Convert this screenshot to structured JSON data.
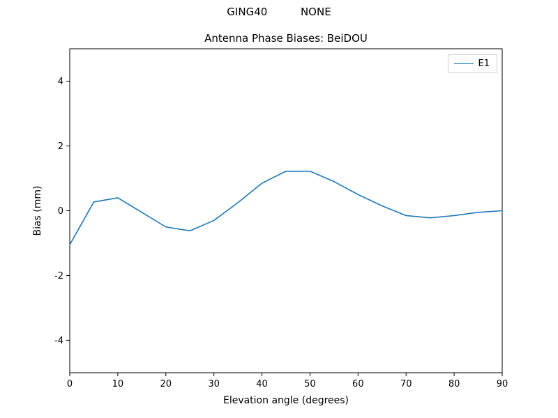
{
  "figure": {
    "suptitle": "GING40          NONE"
  },
  "chart_data": {
    "type": "line",
    "title": "Antenna Phase Biases: BeiDOU",
    "xlabel": "Elevation angle (degrees)",
    "ylabel": "Bias (mm)",
    "xlim": [
      0,
      90
    ],
    "ylim": [
      -5,
      5
    ],
    "xticks": [
      0,
      10,
      20,
      30,
      40,
      50,
      60,
      70,
      80,
      90
    ],
    "yticks": [
      -4,
      -2,
      0,
      2,
      4
    ],
    "grid": false,
    "legend": {
      "position": "upper right",
      "entries": [
        {
          "label": "E1",
          "color": "#1f77b4"
        }
      ]
    },
    "series": [
      {
        "name": "E1",
        "color": "#1f77b4",
        "x": [
          0,
          5,
          10,
          15,
          20,
          25,
          30,
          35,
          40,
          45,
          50,
          55,
          60,
          65,
          70,
          75,
          80,
          85,
          90
        ],
        "y": [
          -1.05,
          0.27,
          0.4,
          -0.05,
          -0.5,
          -0.62,
          -0.3,
          0.25,
          0.85,
          1.22,
          1.22,
          0.9,
          0.5,
          0.15,
          -0.15,
          -0.22,
          -0.15,
          -0.05,
          0.0
        ]
      }
    ]
  }
}
